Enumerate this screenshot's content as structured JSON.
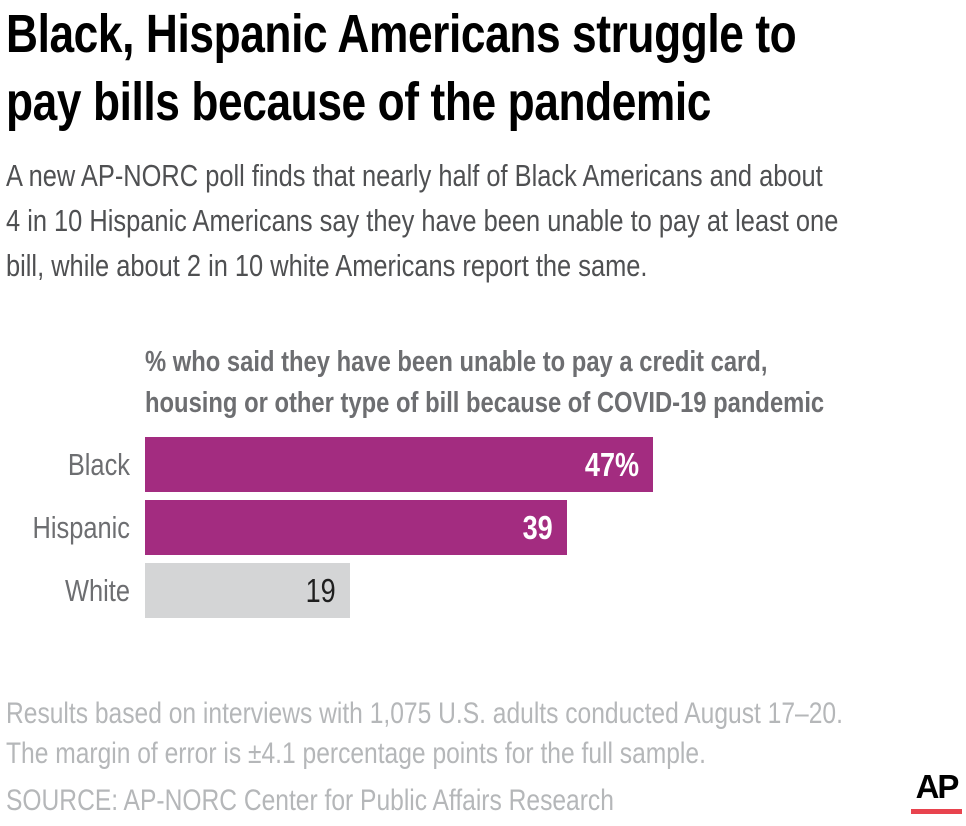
{
  "header": {
    "title_lines": [
      "Black, Hispanic Americans struggle to",
      "pay bills because of the pandemic"
    ]
  },
  "intro": {
    "lines": [
      "A new AP-NORC poll finds that nearly half of Black Americans and about",
      "4 in 10 Hispanic Americans say they have been unable to pay at least one",
      "bill, while about 2 in 10 white Americans report the same."
    ]
  },
  "chart": {
    "title_lines": [
      "% who said they have been unable to pay a credit card,",
      "housing or other type of bill because of COVID-19 pandemic"
    ]
  },
  "chart_data": {
    "type": "bar",
    "orientation": "horizontal",
    "title": "% who said they have been unable to pay a credit card, housing or other type of bill because of COVID-19 pandemic",
    "categories": [
      "Black",
      "Hispanic",
      "White"
    ],
    "values": [
      47,
      39,
      19
    ],
    "value_labels": [
      "47%",
      "39",
      "19"
    ],
    "bar_colors": [
      "#a32c80",
      "#a32c80",
      "#d4d5d6"
    ],
    "value_label_colors": [
      "#ffffff",
      "#ffffff",
      "#1f1f1f"
    ],
    "value_label_bold": [
      true,
      true,
      false
    ],
    "xlim": [
      0,
      76
    ],
    "grid": false,
    "legend": false,
    "axis_ticks_shown": false
  },
  "footer": {
    "note_lines": [
      "Results based on interviews with 1,075 U.S. adults conducted August 17–20.",
      "The margin of error is ±4.1 percentage points for the full sample."
    ],
    "source": "SOURCE: AP-NORC Center for Public Affairs Research"
  },
  "logo": {
    "text": "AP",
    "underline_color": "#e8434e"
  },
  "colors": {
    "accent_magenta": "#a32c80",
    "neutral_bar": "#d4d5d6",
    "title_text": "#000000",
    "body_text": "#4f5052",
    "chart_text": "#6d6e71",
    "footnote_text": "#b5b7b9"
  }
}
